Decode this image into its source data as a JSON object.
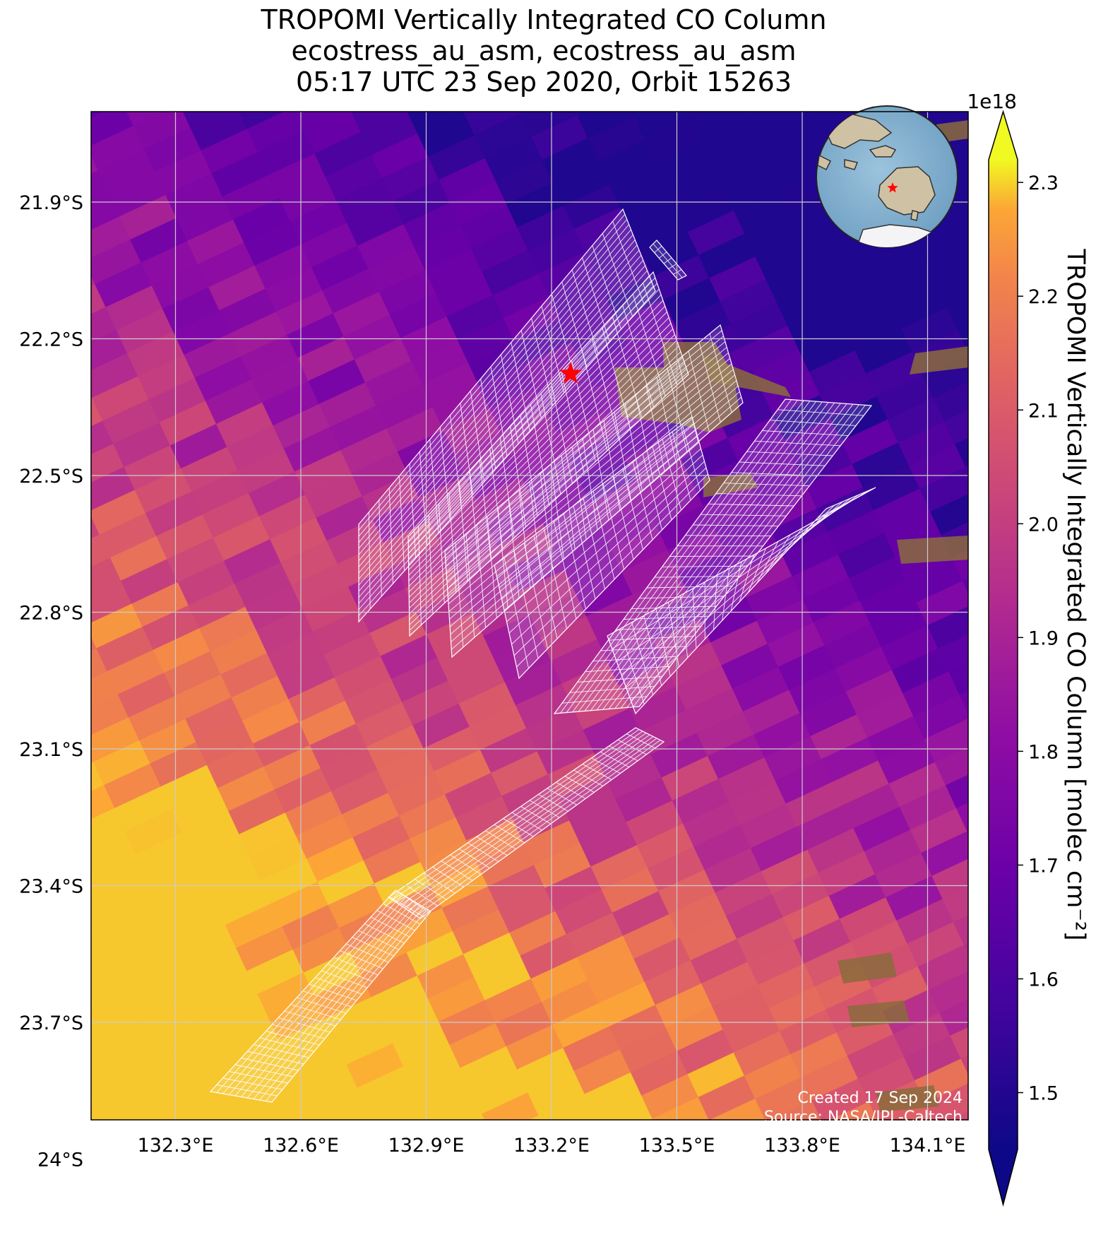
{
  "title": {
    "line1": "TROPOMI Vertically Integrated CO Column",
    "line2": "ecostress_au_asm, ecostress_au_asm",
    "line3": "05:17 UTC 23 Sep 2020, Orbit 15263"
  },
  "map": {
    "lat_ticks": [
      "21.9°S",
      "22.2°S",
      "22.5°S",
      "22.8°S",
      "23.1°S",
      "23.4°S",
      "23.7°S",
      "24°S"
    ],
    "lon_ticks": [
      "132.3°E",
      "132.6°E",
      "132.9°E",
      "133.2°E",
      "133.5°E",
      "133.8°E",
      "134.1°E"
    ],
    "lat_values": [
      -21.9,
      -22.2,
      -22.5,
      -22.8,
      -23.1,
      -23.4,
      -23.7,
      -24.0
    ],
    "lon_values": [
      132.3,
      132.6,
      132.9,
      133.2,
      133.5,
      133.8,
      134.1
    ],
    "gridlines": true,
    "colormap": "plasma",
    "marker": {
      "symbol": "star",
      "color": "#ff0000"
    },
    "inset": "globe-inset",
    "target_overlay_color": "#ffffff"
  },
  "colorbar": {
    "label": "TROPOMI Vertically Integrated CO Column [molec cm⁻²]",
    "exponent": "1e18",
    "ticks": [
      "1.5",
      "1.6",
      "1.7",
      "1.8",
      "1.9",
      "2.0",
      "2.1",
      "2.2",
      "2.3"
    ],
    "tick_values": [
      1.5,
      1.6,
      1.7,
      1.8,
      1.9,
      2.0,
      2.1,
      2.2,
      2.3
    ],
    "extend": "both"
  },
  "credits": {
    "created": "Created 17 Sep 2024",
    "source": "Source: NASA/JPL-Caltech"
  }
}
